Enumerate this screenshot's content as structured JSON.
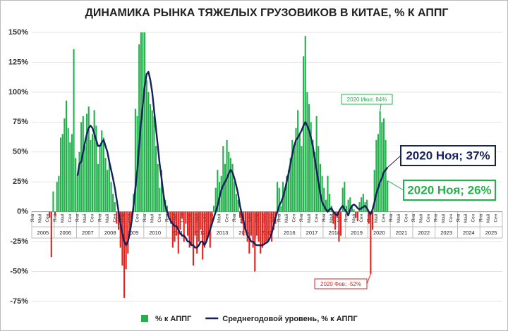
{
  "chart_data": {
    "type": "bar_line",
    "title": "ДИНАМИКА РЫНКА ТЯЖЕЛЫХ ГРУЗОВИКОВ В КИТАЕ, % К АППГ",
    "categories": [
      "Янв",
      null,
      null,
      null,
      "Май",
      null,
      null,
      null,
      "Сен",
      null,
      null,
      null,
      "Янв",
      null,
      null,
      null,
      "Май",
      null,
      null,
      null,
      "Сен",
      null,
      null,
      null,
      "Янв",
      null,
      null,
      null,
      "Май",
      null,
      null,
      null,
      "Сен",
      null,
      null,
      null,
      "Янв",
      null,
      null,
      null,
      "Май",
      null,
      null,
      null,
      "Сен",
      null,
      null,
      null,
      "Янв",
      null,
      null,
      null,
      "Май",
      null,
      null,
      null,
      "Сен",
      null,
      null,
      null,
      "Янв",
      null,
      null,
      null,
      "Май",
      null,
      null,
      null,
      "Сен",
      null,
      null,
      null,
      "Янв",
      null,
      null,
      null,
      "Май",
      null,
      null,
      null,
      "Сен",
      null,
      null,
      null,
      "Янв",
      null,
      null,
      null,
      "Май",
      null,
      null,
      null,
      "Сен",
      null,
      null,
      null,
      "Янв",
      null,
      null,
      null,
      "Май",
      null,
      null,
      null,
      "Сен",
      null,
      null,
      null,
      "Янв",
      null,
      null,
      null,
      "Май",
      null,
      null,
      null,
      "Сен",
      null,
      null,
      null,
      "Янв",
      null,
      null,
      null,
      "Май",
      null,
      null,
      null,
      "Сен",
      null,
      null,
      null,
      "Янв",
      null,
      null,
      null,
      "Май",
      null,
      null,
      null,
      "Сен",
      null,
      null,
      null,
      "Янв",
      null,
      null,
      null,
      "Май",
      null,
      null,
      null,
      "Сен",
      null,
      null,
      null,
      "Янв",
      null,
      null,
      null,
      "Май",
      null,
      null,
      null,
      "Сен",
      null,
      null,
      null,
      "Янв",
      null,
      null,
      null,
      "Май",
      null,
      null,
      null,
      "Сен",
      null,
      null,
      null,
      "Янв",
      null,
      null,
      null,
      "Май",
      null,
      null,
      null,
      "Сен",
      null,
      null,
      null,
      "Янв",
      null,
      null,
      null,
      "Май",
      null,
      null,
      null,
      "Сен",
      null,
      null,
      null,
      "Янв",
      null,
      null,
      null,
      "Май",
      null,
      null,
      null,
      "Сен",
      null,
      null,
      null,
      "Янв",
      null,
      null,
      null,
      "Май",
      null,
      null,
      null,
      "Сен",
      null,
      null,
      null,
      "Янв",
      null,
      null,
      null,
      "Май",
      null,
      null,
      null,
      "Сен",
      null,
      null,
      null,
      "Янв",
      null,
      null,
      null,
      "Май",
      null,
      null,
      null,
      "Сен",
      null,
      null,
      null
    ],
    "year_labels": [
      "2005",
      "2006",
      "2007",
      "2008",
      "2009",
      "2010",
      "2011",
      "2012",
      "2013",
      "2014",
      "2015",
      "2016",
      "2017",
      "2018",
      "2019",
      "2020",
      "2021",
      "2022",
      "2023",
      "2024",
      "2025"
    ],
    "series": [
      {
        "name": "% к АППГ",
        "kind": "bar",
        "color": "#22b14c",
        "negative_color": "#e3211d",
        "values": [
          null,
          null,
          null,
          null,
          null,
          null,
          null,
          null,
          null,
          -5,
          -38,
          17,
          -3,
          25,
          30,
          62,
          65,
          78,
          93,
          70,
          58,
          65,
          136,
          45,
          30,
          50,
          75,
          80,
          55,
          82,
          88,
          60,
          65,
          85,
          72,
          40,
          55,
          68,
          62,
          45,
          35,
          42,
          25,
          15,
          8,
          -10,
          -15,
          -30,
          -45,
          -72,
          -48,
          -35,
          -20,
          -5,
          15,
          86,
          80,
          140,
          150,
          150,
          150,
          110,
          100,
          90,
          85,
          80,
          55,
          40,
          20,
          35,
          15,
          10,
          5,
          -5,
          -10,
          -30,
          -25,
          -20,
          -35,
          -15,
          -5,
          -25,
          -10,
          -20,
          -30,
          -28,
          -45,
          -20,
          -35,
          -25,
          -15,
          -40,
          -30,
          -25,
          -20,
          -30,
          -10,
          5,
          20,
          35,
          25,
          30,
          55,
          40,
          60,
          50,
          45,
          40,
          25,
          15,
          10,
          -5,
          -10,
          -20,
          -15,
          -25,
          -35,
          -20,
          -30,
          -50,
          -20,
          -25,
          -35,
          -30,
          -28,
          -25,
          -25,
          -20,
          -25,
          -15,
          -10,
          25,
          20,
          5,
          25,
          20,
          30,
          35,
          45,
          60,
          55,
          70,
          85,
          65,
          55,
          130,
          147,
          100,
          90,
          75,
          60,
          50,
          80,
          55,
          40,
          30,
          20,
          10,
          30,
          15,
          5,
          -10,
          -15,
          -5,
          -25,
          -20,
          20,
          25,
          5,
          10,
          12,
          5,
          2,
          -5,
          -8,
          8,
          12,
          15,
          8,
          10,
          -10,
          -52,
          -15,
          35,
          60,
          65,
          84,
          75,
          78,
          60,
          26,
          null,
          null,
          null,
          null,
          null,
          null,
          null,
          null,
          null,
          null,
          null,
          null,
          null,
          null,
          null,
          null,
          null,
          null,
          null,
          null,
          null,
          null,
          null,
          null,
          null,
          null,
          null,
          null,
          null,
          null,
          null,
          null,
          null,
          null,
          null,
          null,
          null,
          null,
          null,
          null,
          null,
          null,
          null,
          null,
          null,
          null,
          null,
          null,
          null,
          null,
          null,
          null,
          null,
          null,
          null,
          null,
          null,
          null,
          null,
          null,
          null
        ]
      },
      {
        "name": "Среднегодовой уровень, % к АППГ",
        "kind": "line",
        "color": "#14215a",
        "values": [
          null,
          null,
          null,
          null,
          null,
          null,
          null,
          null,
          null,
          null,
          null,
          null,
          null,
          null,
          null,
          null,
          null,
          null,
          null,
          null,
          null,
          null,
          null,
          null,
          30,
          40,
          42,
          50,
          58,
          65,
          70,
          72,
          70,
          65,
          60,
          55,
          55,
          58,
          60,
          55,
          50,
          42,
          35,
          28,
          20,
          10,
          0,
          -10,
          -18,
          -25,
          -28,
          -25,
          -18,
          -8,
          5,
          20,
          35,
          55,
          75,
          90,
          105,
          115,
          117,
          110,
          100,
          85,
          70,
          55,
          40,
          28,
          15,
          5,
          0,
          -5,
          -8,
          -10,
          -12,
          -12,
          -15,
          -18,
          -20,
          -20,
          -22,
          -25,
          -25,
          -28,
          -28,
          -30,
          -30,
          -28,
          -25,
          -25,
          -28,
          -25,
          -20,
          -15,
          -10,
          -5,
          0,
          5,
          12,
          18,
          22,
          25,
          28,
          32,
          35,
          33,
          28,
          22,
          15,
          5,
          -2,
          -8,
          -15,
          -20,
          -22,
          -25,
          -25,
          -27,
          -28,
          -28,
          -28,
          -28,
          -27,
          -26,
          -25,
          -22,
          -18,
          -12,
          -5,
          0,
          5,
          8,
          12,
          18,
          25,
          32,
          40,
          48,
          55,
          60,
          62,
          65,
          68,
          72,
          75,
          72,
          68,
          62,
          55,
          45,
          35,
          25,
          15,
          8,
          5,
          2,
          0,
          2,
          3,
          0,
          -2,
          -3,
          0,
          3,
          5,
          2,
          0,
          -3,
          2,
          5,
          6,
          5,
          3,
          2,
          3,
          4,
          5,
          3,
          0,
          -2,
          2,
          8,
          15,
          20,
          25,
          28,
          33,
          35,
          37,
          null,
          null,
          null,
          null,
          null,
          null,
          null,
          null,
          null,
          null,
          null,
          null,
          null,
          null,
          null,
          null,
          null,
          null,
          null,
          null,
          null,
          null,
          null,
          null,
          null,
          null,
          null,
          null,
          null,
          null,
          null,
          null,
          null,
          null,
          null,
          null,
          null,
          null,
          null,
          null,
          null,
          null,
          null,
          null,
          null,
          null,
          null,
          null,
          null,
          null,
          null,
          null,
          null,
          null,
          null,
          null,
          null,
          null,
          null,
          null,
          null
        ]
      }
    ],
    "ylim": [
      -75,
      150
    ],
    "yticks": [
      {
        "value": -75,
        "label": "-75%"
      },
      {
        "value": -50,
        "label": "-50%"
      },
      {
        "value": -25,
        "label": "-25%"
      },
      {
        "value": 0,
        "label": "0%"
      },
      {
        "value": 25,
        "label": "25%"
      },
      {
        "value": 50,
        "label": "50%"
      },
      {
        "value": 75,
        "label": "75%"
      },
      {
        "value": 100,
        "label": "100%"
      },
      {
        "value": 125,
        "label": "125%"
      },
      {
        "value": 150,
        "label": "150%"
      }
    ],
    "grid": true,
    "annotations": [
      {
        "text": "2020 Июл; 84%",
        "color": "#22b14c"
      },
      {
        "text": "2020 Фев; -52%",
        "color": "#e3211d"
      },
      {
        "text": "2020 Ноя; 37%",
        "color": "#14215a"
      },
      {
        "text": "2020 Ноя; 26%",
        "color": "#22b14c"
      }
    ],
    "legend": "bottom"
  }
}
